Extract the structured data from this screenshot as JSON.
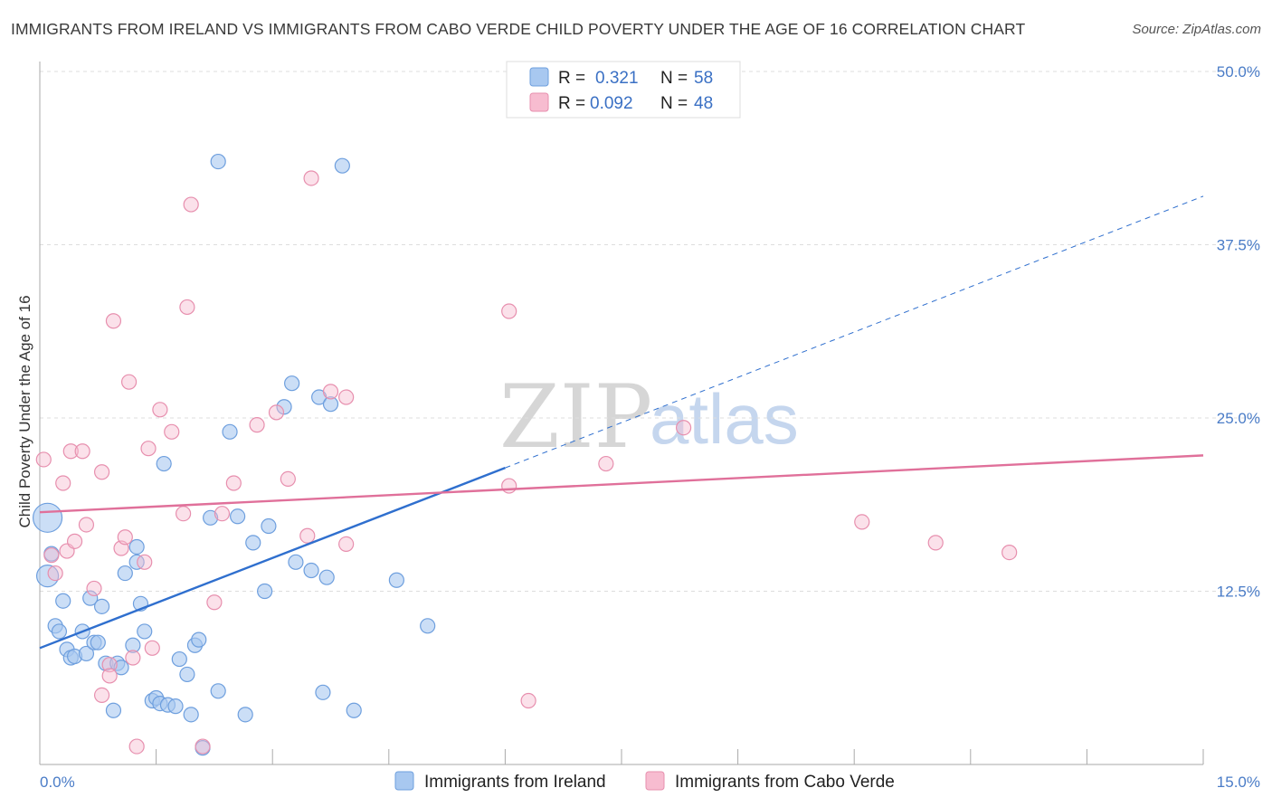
{
  "title": "IMMIGRANTS FROM IRELAND VS IMMIGRANTS FROM CABO VERDE CHILD POVERTY UNDER THE AGE OF 16 CORRELATION CHART",
  "source": "Source: ZipAtlas.com",
  "watermark": {
    "zip": "ZIP",
    "atlas": "atlas"
  },
  "colors": {
    "ireland_fill": "#a8c8f0",
    "ireland_stroke": "#6e9fde",
    "ireland_line": "#2f6fce",
    "caboverde_fill": "#f7bcd0",
    "caboverde_stroke": "#e78fae",
    "caboverde_line": "#e0709a",
    "tick_label": "#4a7cc7",
    "grid": "#dddddd"
  },
  "legend": {
    "rows": [
      {
        "r_label": "R =",
        "r_value": "0.321",
        "n_label": "N =",
        "n_value": "58"
      },
      {
        "r_label": "R =",
        "r_value": "0.092",
        "n_label": "N =",
        "n_value": "48"
      }
    ]
  },
  "chart_data": {
    "type": "scatter",
    "title": "IMMIGRANTS FROM IRELAND VS IMMIGRANTS FROM CABO VERDE CHILD POVERTY UNDER THE AGE OF 16 CORRELATION CHART",
    "xlabel": "",
    "ylabel": "Child Poverty Under the Age of 16",
    "xlim": [
      0,
      15
    ],
    "ylim": [
      0,
      50
    ],
    "x_tick_labels": [
      "0.0%",
      "15.0%"
    ],
    "y_ticks": [
      12.5,
      25.0,
      37.5,
      50.0
    ],
    "y_tick_labels": [
      "12.5%",
      "25.0%",
      "37.5%",
      "50.0%"
    ],
    "grid": true,
    "legend_position": "top-center",
    "series": [
      {
        "name": "Immigrants from Ireland",
        "points": [
          [
            0.1,
            17.8
          ],
          [
            0.1,
            13.6
          ],
          [
            0.15,
            15.2
          ],
          [
            0.2,
            10.0
          ],
          [
            0.25,
            9.6
          ],
          [
            0.3,
            11.8
          ],
          [
            0.35,
            8.3
          ],
          [
            0.4,
            7.7
          ],
          [
            0.45,
            7.8
          ],
          [
            0.55,
            9.6
          ],
          [
            0.6,
            8.0
          ],
          [
            0.65,
            12.0
          ],
          [
            0.7,
            8.8
          ],
          [
            0.75,
            8.8
          ],
          [
            0.8,
            11.4
          ],
          [
            0.85,
            7.3
          ],
          [
            0.95,
            3.9
          ],
          [
            1.0,
            7.3
          ],
          [
            1.05,
            7.0
          ],
          [
            1.1,
            13.8
          ],
          [
            1.2,
            8.6
          ],
          [
            1.25,
            15.7
          ],
          [
            1.3,
            11.6
          ],
          [
            1.35,
            9.6
          ],
          [
            1.45,
            4.6
          ],
          [
            1.5,
            4.8
          ],
          [
            1.55,
            4.4
          ],
          [
            1.65,
            4.3
          ],
          [
            1.75,
            4.2
          ],
          [
            1.6,
            21.7
          ],
          [
            1.8,
            7.6
          ],
          [
            1.9,
            6.5
          ],
          [
            1.95,
            3.6
          ],
          [
            2.0,
            8.6
          ],
          [
            2.05,
            9.0
          ],
          [
            2.2,
            17.8
          ],
          [
            2.3,
            43.5
          ],
          [
            2.3,
            5.3
          ],
          [
            2.45,
            24.0
          ],
          [
            2.55,
            17.9
          ],
          [
            2.65,
            3.6
          ],
          [
            2.75,
            16.0
          ],
          [
            2.9,
            12.5
          ],
          [
            2.95,
            17.2
          ],
          [
            3.15,
            25.8
          ],
          [
            3.25,
            27.5
          ],
          [
            3.3,
            14.6
          ],
          [
            3.5,
            14.0
          ],
          [
            3.6,
            26.5
          ],
          [
            3.65,
            5.2
          ],
          [
            3.7,
            13.5
          ],
          [
            3.75,
            26.0
          ],
          [
            3.9,
            43.2
          ],
          [
            4.05,
            3.9
          ],
          [
            4.6,
            13.3
          ],
          [
            5.0,
            10.0
          ],
          [
            1.25,
            14.6
          ],
          [
            2.1,
            1.2
          ]
        ]
      },
      {
        "name": "Immigrants from Cabo Verde",
        "points": [
          [
            0.05,
            22.0
          ],
          [
            0.15,
            15.1
          ],
          [
            0.2,
            13.8
          ],
          [
            0.3,
            20.3
          ],
          [
            0.35,
            15.4
          ],
          [
            0.4,
            22.6
          ],
          [
            0.45,
            16.1
          ],
          [
            0.55,
            22.6
          ],
          [
            0.6,
            17.3
          ],
          [
            0.7,
            12.7
          ],
          [
            0.8,
            5.0
          ],
          [
            0.8,
            21.1
          ],
          [
            0.9,
            7.2
          ],
          [
            0.9,
            6.4
          ],
          [
            0.95,
            32.0
          ],
          [
            1.05,
            15.6
          ],
          [
            1.1,
            16.4
          ],
          [
            1.15,
            27.6
          ],
          [
            1.2,
            7.7
          ],
          [
            1.25,
            1.3
          ],
          [
            1.35,
            14.6
          ],
          [
            1.4,
            22.8
          ],
          [
            1.45,
            8.4
          ],
          [
            1.55,
            25.6
          ],
          [
            1.7,
            24.0
          ],
          [
            1.85,
            18.1
          ],
          [
            1.95,
            40.4
          ],
          [
            1.9,
            33.0
          ],
          [
            2.1,
            1.3
          ],
          [
            2.25,
            11.7
          ],
          [
            2.35,
            18.1
          ],
          [
            2.5,
            20.3
          ],
          [
            2.8,
            24.5
          ],
          [
            3.05,
            25.4
          ],
          [
            3.2,
            20.6
          ],
          [
            3.45,
            16.5
          ],
          [
            3.5,
            42.3
          ],
          [
            3.75,
            26.9
          ],
          [
            3.95,
            26.5
          ],
          [
            3.95,
            15.9
          ],
          [
            6.05,
            32.7
          ],
          [
            6.05,
            20.1
          ],
          [
            6.3,
            4.6
          ],
          [
            7.3,
            21.7
          ],
          [
            8.3,
            24.3
          ],
          [
            10.6,
            17.5
          ],
          [
            11.55,
            16.0
          ],
          [
            12.5,
            15.3
          ]
        ]
      }
    ],
    "trendlines": [
      {
        "series": "Immigrants from Ireland",
        "solid": [
          [
            0.0,
            8.4
          ],
          [
            6.0,
            21.4
          ]
        ],
        "dashed": [
          [
            6.0,
            21.4
          ],
          [
            15.0,
            41.0
          ]
        ]
      },
      {
        "series": "Immigrants from Cabo Verde",
        "solid": [
          [
            0.0,
            18.2
          ],
          [
            15.0,
            22.3
          ]
        ]
      }
    ]
  }
}
